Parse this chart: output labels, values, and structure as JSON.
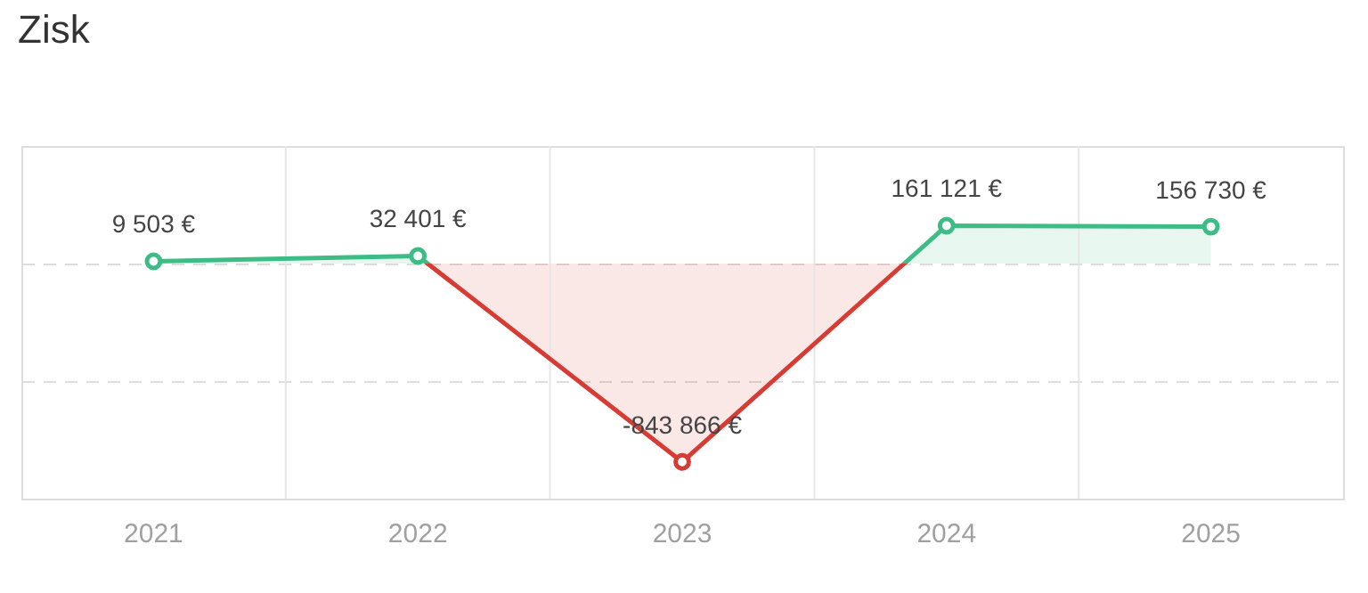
{
  "chart_data": {
    "type": "line",
    "title": "Zisk",
    "categories": [
      "2021",
      "2022",
      "2023",
      "2024",
      "2025"
    ],
    "series": [
      {
        "values": [
          9503,
          32401,
          -843866,
          161121,
          156730
        ],
        "colors": [
          "#3dbd85",
          "#3dbd85",
          "#d63c33",
          "#3dbd85",
          "#3dbd85"
        ],
        "value_labels": [
          "9 503 €",
          "32 401 €",
          "-843 866 €",
          "161 121 €",
          "156 730 €"
        ]
      }
    ],
    "ylim": [
      -1000000,
      500000
    ],
    "yticks": [
      {
        "value": -500000,
        "label": null
      },
      {
        "value": 0,
        "label": null
      },
      {
        "value": 500000,
        "label": null
      }
    ],
    "grid": true,
    "marker": "circle",
    "line_style": "solid"
  }
}
